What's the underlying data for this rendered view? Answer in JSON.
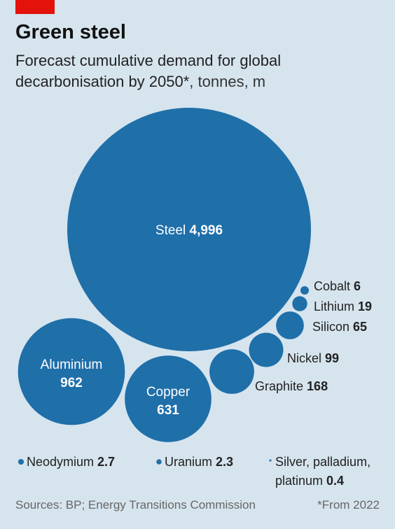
{
  "header": {
    "title": "Green steel",
    "subtitle_main": "Forecast cumulative demand for global decarbonisation by 2050*",
    "subtitle_unit": ", tonnes, m"
  },
  "colors": {
    "accent": "#e3120b",
    "bubble": "#1f6fa9",
    "background": "#d6e4ee"
  },
  "chart_data": {
    "type": "bubble",
    "title": "Green steel",
    "subtitle": "Forecast cumulative demand for global decarbonisation by 2050*, tonnes, m",
    "categories": [
      "Steel",
      "Aluminium",
      "Copper",
      "Graphite",
      "Nickel",
      "Silicon",
      "Lithium",
      "Cobalt",
      "Neodymium",
      "Uranium",
      "Silver, palladium, platinum"
    ],
    "values": [
      4996,
      962,
      631,
      168,
      99,
      65,
      19,
      6,
      2.7,
      2.3,
      0.4
    ],
    "value_labels": [
      "4,996",
      "962",
      "631",
      "168",
      "99",
      "65",
      "19",
      "6",
      "2.7",
      "2.3",
      "0.4"
    ]
  },
  "footer": {
    "sources": "Sources: BP; Energy Transitions Commission",
    "note": "*From 2022"
  }
}
